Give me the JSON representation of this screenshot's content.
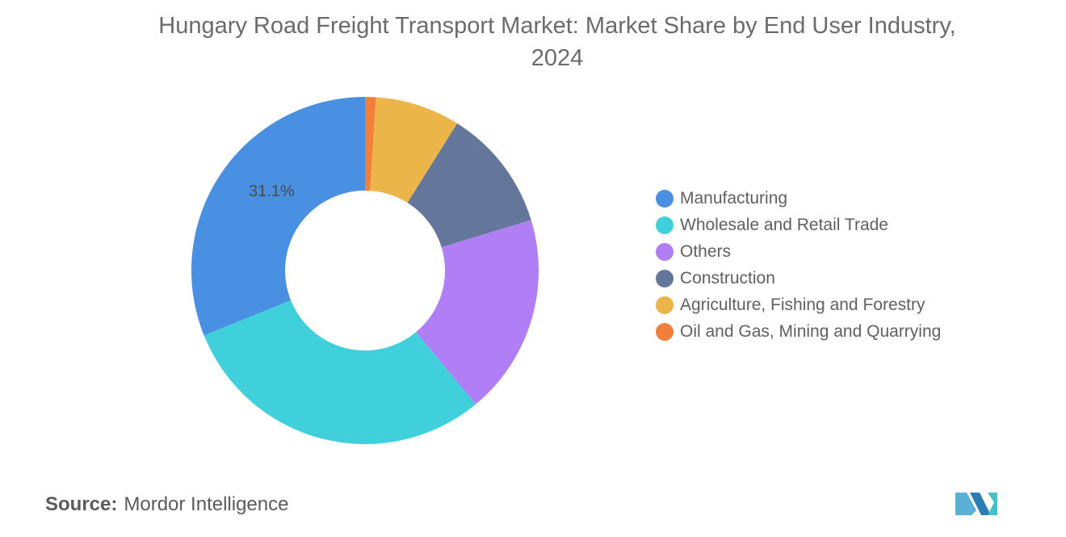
{
  "title_line1": "Hungary Road Freight Transport Market: Market Share by End User Industry,",
  "title_line2": "2024",
  "source_label": "Source:",
  "source_value": "Mordor Intelligence",
  "chart_data": {
    "type": "pie",
    "donut": true,
    "title": "Hungary Road Freight Transport Market: Market Share by End User Industry, 2024",
    "legend_position": "right",
    "categories": [
      "Manufacturing",
      "Wholesale and Retail Trade",
      "Others",
      "Construction",
      "Agriculture, Fishing and Forestry",
      "Oil and Gas, Mining and Quarrying"
    ],
    "values": [
      31.1,
      29.9,
      18.7,
      11.4,
      7.9,
      1.0
    ],
    "colors": [
      "#4a90e2",
      "#40d0dc",
      "#b07ff5",
      "#64779a",
      "#ebb54a",
      "#f0803c"
    ],
    "data_labels": [
      {
        "category": "Manufacturing",
        "text": "31.1%"
      }
    ]
  },
  "logo": {
    "icon": "mordor-intelligence-logo",
    "colors": [
      "#5bb0d6",
      "#2b7db6",
      "#44c1c6"
    ]
  }
}
